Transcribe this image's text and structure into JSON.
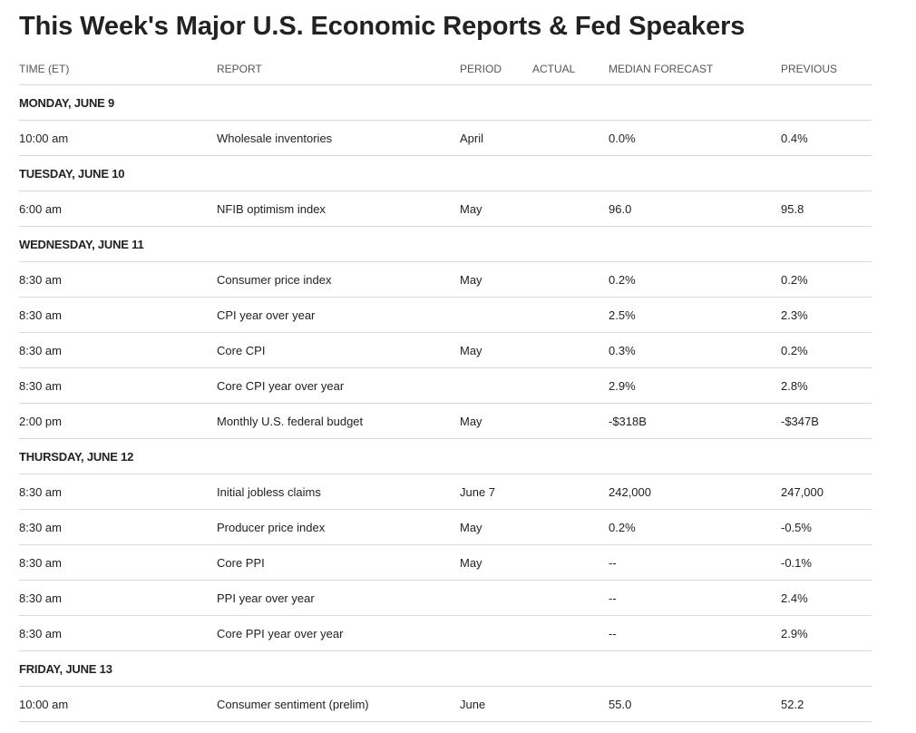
{
  "title": "This Week's Major U.S. Economic Reports & Fed Speakers",
  "columns": {
    "time": "TIME (ET)",
    "report": "REPORT",
    "period": "PERIOD",
    "actual": "ACTUAL",
    "median": "MEDIAN FORECAST",
    "previous": "PREVIOUS"
  },
  "days": [
    {
      "label": "MONDAY, JUNE 9",
      "rows": [
        {
          "time": "10:00 am",
          "report": "Wholesale inventories",
          "period": "April",
          "actual": "",
          "median": "0.0%",
          "previous": "0.4%"
        }
      ]
    },
    {
      "label": "TUESDAY, JUNE 10",
      "rows": [
        {
          "time": "6:00 am",
          "report": "NFIB optimism index",
          "period": "May",
          "actual": "",
          "median": "96.0",
          "previous": "95.8"
        }
      ]
    },
    {
      "label": "WEDNESDAY, JUNE 11",
      "rows": [
        {
          "time": "8:30 am",
          "report": "Consumer price index",
          "period": "May",
          "actual": "",
          "median": "0.2%",
          "previous": "0.2%"
        },
        {
          "time": "8:30 am",
          "report": "CPI year over year",
          "period": "",
          "actual": "",
          "median": "2.5%",
          "previous": "2.3%"
        },
        {
          "time": "8:30 am",
          "report": "Core CPI",
          "period": "May",
          "actual": "",
          "median": "0.3%",
          "previous": "0.2%"
        },
        {
          "time": "8:30 am",
          "report": "Core CPI year over year",
          "period": "",
          "actual": "",
          "median": "2.9%",
          "previous": "2.8%"
        },
        {
          "time": "2:00 pm",
          "report": "Monthly U.S. federal budget",
          "period": "May",
          "actual": "",
          "median": "-$318B",
          "previous": "-$347B"
        }
      ]
    },
    {
      "label": "THURSDAY, JUNE 12",
      "rows": [
        {
          "time": "8:30 am",
          "report": "Initial jobless claims",
          "period": "June 7",
          "actual": "",
          "median": "242,000",
          "previous": "247,000"
        },
        {
          "time": "8:30 am",
          "report": "Producer price index",
          "period": "May",
          "actual": "",
          "median": "0.2%",
          "previous": "-0.5%"
        },
        {
          "time": "8:30 am",
          "report": "Core PPI",
          "period": "May",
          "actual": "",
          "median": "--",
          "previous": "-0.1%"
        },
        {
          "time": "8:30 am",
          "report": "PPI year over year",
          "period": "",
          "actual": "",
          "median": "--",
          "previous": "2.4%"
        },
        {
          "time": "8:30 am",
          "report": "Core PPI year over year",
          "period": "",
          "actual": "",
          "median": "--",
          "previous": "2.9%"
        }
      ]
    },
    {
      "label": "FRIDAY, JUNE 13",
      "rows": [
        {
          "time": "10:00 am",
          "report": "Consumer sentiment (prelim)",
          "period": "June",
          "actual": "",
          "median": "55.0",
          "previous": "52.2"
        }
      ]
    }
  ]
}
